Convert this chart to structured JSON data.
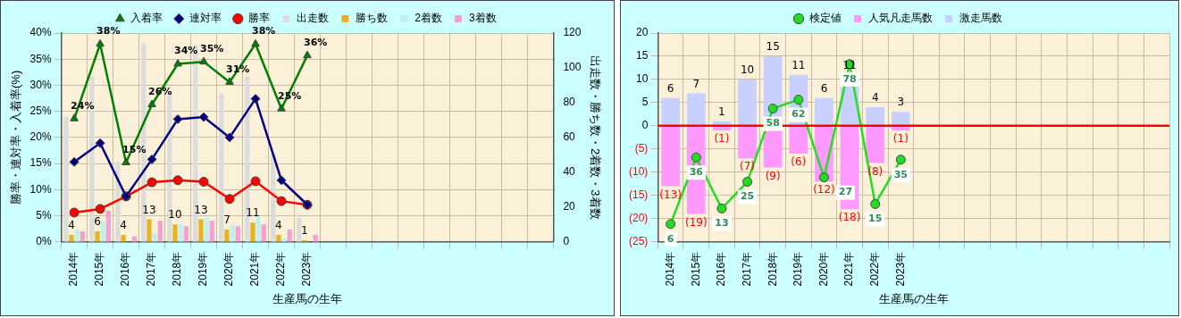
{
  "chart_data": [
    {
      "type": "bar",
      "categories": [
        "2014年",
        "2015年",
        "2016年",
        "2017年",
        "2018年",
        "2019年",
        "2020年",
        "2021年",
        "2022年",
        "2023年",
        null,
        null,
        null,
        null,
        null,
        null,
        null,
        null,
        null
      ],
      "series": [
        {
          "name": "出走数",
          "axis": "y2",
          "color": "#dcdcdc",
          "values": [
            72,
            95,
            46,
            114,
            85,
            113,
            85,
            95,
            51,
            14,
            null,
            null,
            null,
            null,
            null,
            null,
            null,
            null,
            null
          ]
        },
        {
          "name": "勝ち数",
          "axis": "y2",
          "color": "#e6b422",
          "values": [
            4,
            6,
            4,
            13,
            10,
            13,
            7,
            11,
            4,
            1,
            null,
            null,
            null,
            null,
            null,
            null,
            null,
            null,
            null
          ],
          "value_labels": [
            "4",
            "6",
            "4",
            "13",
            "10",
            "13",
            "7",
            "11",
            "4",
            "1",
            null,
            null,
            null,
            null,
            null,
            null,
            null,
            null,
            null
          ]
        },
        {
          "name": "2着数",
          "axis": "y2",
          "color": "#bff0f0",
          "values": [
            7,
            12,
            0,
            5,
            10,
            14,
            10,
            15,
            2,
            0,
            null,
            null,
            null,
            null,
            null,
            null,
            null,
            null,
            null
          ]
        },
        {
          "name": "3着数",
          "axis": "y2",
          "color": "#f5a0d0",
          "values": [
            6,
            18,
            3,
            12,
            9,
            12,
            9,
            10,
            7,
            4,
            null,
            null,
            null,
            null,
            null,
            null,
            null,
            null,
            null
          ]
        },
        {
          "name": "入着率",
          "type": "line",
          "color": "#008000",
          "marker": "triangle",
          "values": [
            23.6,
            37.9,
            15.2,
            26.3,
            34.1,
            34.5,
            30.6,
            37.9,
            25.5,
            35.7,
            null,
            null,
            null,
            null,
            null,
            null,
            null,
            null,
            null
          ],
          "value_labels": [
            "24%",
            "38%",
            "15%",
            "26%",
            "34%",
            "35%",
            "31%",
            "38%",
            "25%",
            "36%",
            null,
            null,
            null,
            null,
            null,
            null,
            null,
            null,
            null
          ]
        },
        {
          "name": "連対率",
          "type": "line",
          "color": "#000080",
          "marker": "diamond",
          "values": [
            15.3,
            18.9,
            8.7,
            15.8,
            23.5,
            23.9,
            20.0,
            27.4,
            11.8,
            7.1,
            null,
            null,
            null,
            null,
            null,
            null,
            null,
            null,
            null
          ]
        },
        {
          "name": "勝率",
          "type": "line",
          "color": "#ff0000",
          "marker": "circle",
          "values": [
            5.6,
            6.3,
            8.7,
            11.4,
            11.8,
            11.5,
            8.2,
            11.6,
            7.8,
            7.1,
            null,
            null,
            null,
            null,
            null,
            null,
            null,
            null,
            null
          ]
        }
      ],
      "xlabel": "生産馬の生年",
      "ylabel": "勝率・連対率・入着率(%)",
      "y2label": "出走数・勝ち数・2着数・3着数",
      "ylim": [
        0,
        40
      ],
      "yticks": [
        {
          "value": 0,
          "label": "0%"
        },
        {
          "value": 5,
          "label": "5%"
        },
        {
          "value": 10,
          "label": "10%"
        },
        {
          "value": 15,
          "label": "15%"
        },
        {
          "value": 20,
          "label": "20%"
        },
        {
          "value": 25,
          "label": "25%"
        },
        {
          "value": 30,
          "label": "30%"
        },
        {
          "value": 35,
          "label": "35%"
        },
        {
          "value": 40,
          "label": "40%"
        }
      ],
      "y2lim": [
        0,
        120
      ],
      "y2ticks": [
        0,
        20,
        40,
        60,
        80,
        100,
        120
      ],
      "grid": true,
      "legend": "top"
    },
    {
      "type": "bar",
      "categories": [
        "2014年",
        "2015年",
        "2016年",
        "2017年",
        "2018年",
        "2019年",
        "2020年",
        "2021年",
        "2022年",
        "2023年",
        null,
        null,
        null,
        null,
        null,
        null,
        null,
        null,
        null,
        null
      ],
      "series": [
        {
          "name": "人気凡走馬数",
          "color": "#ff99ff",
          "values": [
            -13,
            -19,
            -1,
            -7,
            -9,
            -6,
            -12,
            -18,
            -8,
            -1,
            null,
            null,
            null,
            null,
            null,
            null,
            null,
            null,
            null,
            null
          ],
          "value_labels": [
            "(13)",
            "(19)",
            "(1)",
            "(7)",
            "(9)",
            "(6)",
            "(12)",
            "(18)",
            "(8)",
            "(1)",
            null,
            null,
            null,
            null,
            null,
            null,
            null,
            null,
            null,
            null
          ]
        },
        {
          "name": "激走馬数",
          "color": "#c8d0ff",
          "values": [
            6,
            7,
            1,
            10,
            15,
            11,
            6,
            11,
            4,
            3,
            null,
            null,
            null,
            null,
            null,
            null,
            null,
            null,
            null,
            null
          ],
          "value_labels": [
            "6",
            "7",
            "1",
            "10",
            "15",
            "11",
            "6",
            "11",
            "4",
            "3",
            null,
            null,
            null,
            null,
            null,
            null,
            null,
            null,
            null,
            null
          ]
        },
        {
          "name": "検定値",
          "type": "line",
          "axis": "y2",
          "color": "#22dd22",
          "marker": "circle",
          "values": [
            6,
            36,
            13,
            25,
            58,
            62,
            27,
            78,
            15,
            35,
            null,
            null,
            null,
            null,
            null,
            null,
            null,
            null,
            null,
            null
          ],
          "value_labels": [
            "6",
            "36",
            "13",
            "25",
            "58",
            "62",
            "27",
            "78",
            "15",
            "35",
            null,
            null,
            null,
            null,
            null,
            null,
            null,
            null,
            null,
            null
          ]
        }
      ],
      "xlabel": "生産馬の生年",
      "stacked": true,
      "ylim": [
        -25,
        20
      ],
      "yticks": [
        {
          "value": -25,
          "label": "(25)"
        },
        {
          "value": -20,
          "label": "(20)"
        },
        {
          "value": -15,
          "label": "(15)"
        },
        {
          "value": -10,
          "label": "(10)"
        },
        {
          "value": -5,
          "label": "(5)"
        },
        0,
        5,
        10,
        15,
        20
      ],
      "y2lim": [
        -2,
        92
      ],
      "ref_lines": [
        {
          "axis": "y",
          "value": 0,
          "color": "#ff0000"
        }
      ],
      "grid": true,
      "legend": "top"
    }
  ]
}
